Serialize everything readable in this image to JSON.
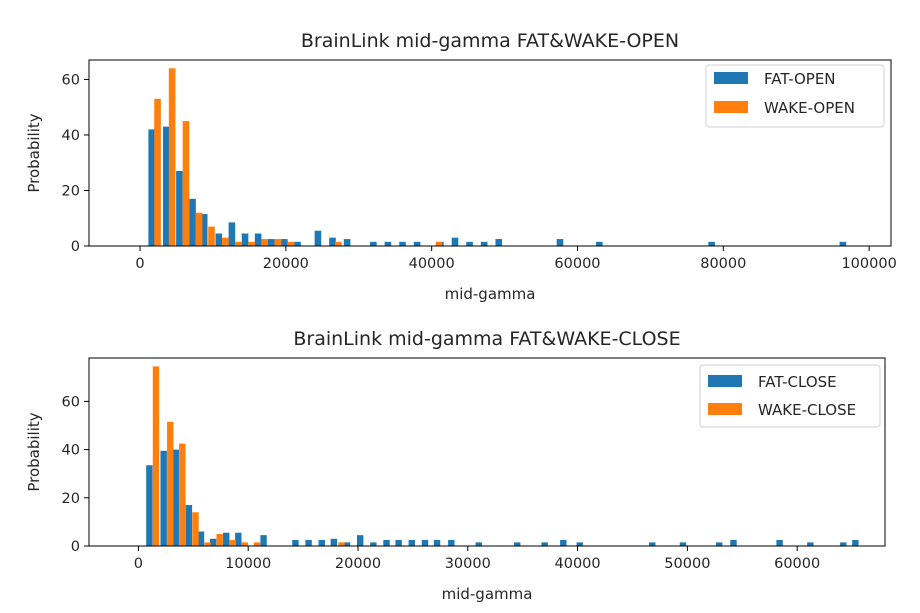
{
  "chart_data": [
    {
      "type": "bar",
      "title": "BrainLink mid-gamma FAT&WAKE-OPEN",
      "xlabel": "mid-gamma",
      "ylabel": "Probability",
      "xlim": [
        -7000,
        103000
      ],
      "ylim": [
        0,
        67
      ],
      "xticks": [
        0,
        20000,
        40000,
        60000,
        80000,
        100000
      ],
      "xtick_labels": [
        "0",
        "20000",
        "40000",
        "60000",
        "80000",
        "100000"
      ],
      "yticks": [
        0,
        20,
        40,
        60
      ],
      "ytick_labels": [
        "0",
        "20",
        "40",
        "60"
      ],
      "grid": false,
      "legend_position": "top-right",
      "series": [
        {
          "name": "FAT-OPEN",
          "color": "#1f77b4",
          "x": [
            1600,
            3600,
            5400,
            7200,
            8800,
            10800,
            12600,
            14400,
            16200,
            18000,
            19800,
            21600,
            24400,
            26400,
            28400,
            32000,
            34000,
            36000,
            38000,
            41200,
            43200,
            45200,
            47200,
            49200,
            57600,
            63000,
            78400,
            96400
          ],
          "values": [
            42,
            43,
            27,
            17,
            11.5,
            4.5,
            8.5,
            4.5,
            4.5,
            2.5,
            2.5,
            1.5,
            5.5,
            3,
            2.5,
            1.5,
            1.5,
            1.5,
            1.5,
            1.5,
            3,
            1.5,
            1.5,
            2.5,
            2.5,
            1.5,
            1.5,
            1.5
          ]
        },
        {
          "name": "WAKE-OPEN",
          "color": "#ff7f0e",
          "x": [
            2400,
            4400,
            6300,
            8100,
            9800,
            11700,
            13500,
            15300,
            17100,
            18900,
            20700,
            27200,
            41000
          ],
          "values": [
            53,
            64,
            45,
            12,
            7,
            3,
            1.5,
            1.5,
            2.5,
            2.5,
            1.5,
            1.5,
            1.5
          ]
        }
      ]
    },
    {
      "type": "bar",
      "title": "BrainLink mid-gamma FAT&WAKE-CLOSE",
      "xlabel": "mid-gamma",
      "ylabel": "Probability",
      "xlim": [
        -4500,
        68000
      ],
      "ylim": [
        0,
        78
      ],
      "xticks": [
        0,
        10000,
        20000,
        30000,
        40000,
        50000,
        60000
      ],
      "xtick_labels": [
        "0",
        "10000",
        "20000",
        "30000",
        "40000",
        "50000",
        "60000"
      ],
      "yticks": [
        0,
        20,
        40,
        60
      ],
      "ytick_labels": [
        "0",
        "20",
        "40",
        "60"
      ],
      "grid": false,
      "legend_position": "top-right",
      "series": [
        {
          "name": "FAT-CLOSE",
          "color": "#1f77b4",
          "x": [
            1000,
            2300,
            3400,
            4600,
            5700,
            6800,
            8000,
            9100,
            11400,
            14300,
            15500,
            16700,
            17800,
            19000,
            20200,
            21400,
            22600,
            23700,
            24900,
            26100,
            27200,
            28500,
            31000,
            34500,
            37000,
            38700,
            40200,
            46800,
            49600,
            52900,
            54200,
            58400,
            61200,
            64200,
            65300
          ],
          "values": [
            33.5,
            39.5,
            40,
            17,
            6,
            3,
            5.5,
            5.5,
            4.5,
            2.5,
            2.5,
            2.5,
            3,
            1.5,
            4.5,
            1.5,
            2.5,
            2.5,
            2.5,
            2.5,
            2.5,
            2.5,
            1.5,
            1.5,
            1.5,
            2.5,
            1.5,
            1.5,
            1.5,
            1.5,
            2.5,
            2.5,
            1.5,
            1.5,
            2.5
          ]
        },
        {
          "name": "WAKE-CLOSE",
          "color": "#ff7f0e",
          "x": [
            1600,
            2900,
            4000,
            5200,
            6300,
            7400,
            8600,
            9700,
            10800,
            18500
          ],
          "values": [
            74.5,
            51.5,
            42.5,
            14,
            1.5,
            5,
            2.5,
            1.5,
            1.5,
            1.5
          ]
        }
      ]
    }
  ]
}
